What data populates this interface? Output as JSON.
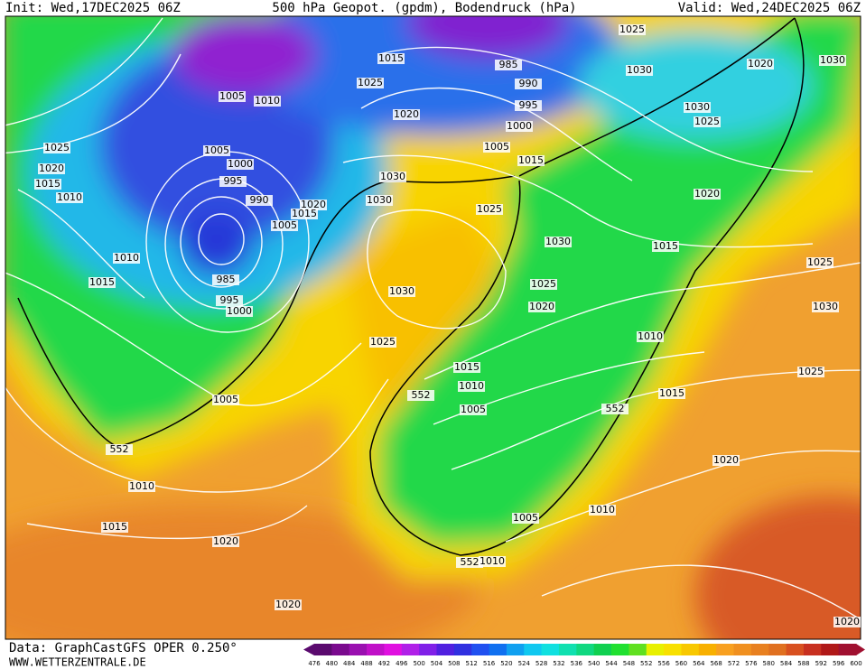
{
  "header": {
    "init": "Init: Wed,17DEC2025 06Z",
    "title": "500 hPa Geopot. (gpdm), Bodendruck (hPa)",
    "valid": "Valid: Wed,24DEC2025 06Z"
  },
  "footer": {
    "data_source": "Data: GraphCastGFS OPER 0.250°",
    "website": "WWW.WETTERZENTRALE.DE"
  },
  "isobar_labels": [
    1025,
    1015,
    985,
    1030,
    1020,
    1030,
    990,
    1025,
    1005,
    1010,
    995,
    1020,
    1030,
    1025,
    1000,
    1025,
    1005,
    1005,
    1015,
    1000,
    1020,
    995,
    1030,
    1015,
    1010,
    990,
    1030,
    1020,
    1015,
    1025,
    1005,
    1020,
    1030,
    1015,
    1010,
    985,
    1015,
    1030,
    1025,
    995,
    1000,
    1020,
    1025,
    1030,
    1025,
    1010,
    1015,
    1025,
    1010,
    1015,
    1005,
    1005,
    552,
    552,
    552,
    1020,
    1010,
    1005,
    1010,
    1015,
    1020,
    552,
    1010,
    1020,
    1020
  ],
  "colorbar": {
    "labels": [
      476,
      480,
      484,
      488,
      492,
      496,
      500,
      504,
      508,
      512,
      516,
      520,
      524,
      528,
      532,
      536,
      540,
      544,
      548,
      552,
      556,
      560,
      564,
      568,
      572,
      576,
      580,
      584,
      588,
      592,
      596,
      600
    ],
    "colors": [
      "#5a0a6e",
      "#7a0a8e",
      "#9a10b0",
      "#c010c8",
      "#e010e0",
      "#b020e8",
      "#8020e8",
      "#5020e0",
      "#3030e0",
      "#2050f0",
      "#1070f0",
      "#10a0f0",
      "#10c8f0",
      "#10e0e0",
      "#10e0b0",
      "#10d880",
      "#10d050",
      "#20e030",
      "#60e020",
      "#e8f000",
      "#f8e000",
      "#f8c800",
      "#f8b000",
      "#f8a020",
      "#f09020",
      "#e88020",
      "#e07020",
      "#d85020",
      "#c83020",
      "#b01818",
      "#a01030"
    ]
  }
}
